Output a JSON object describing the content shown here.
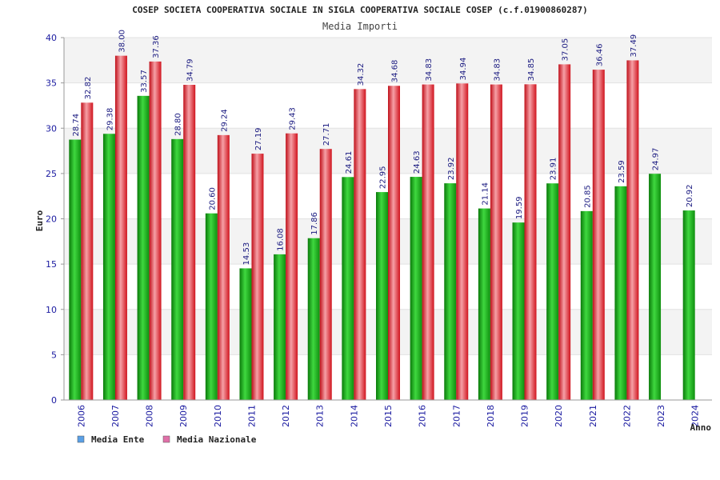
{
  "chart_data": {
    "type": "bar",
    "title": "COSEP SOCIETA COOPERATIVA SOCIALE IN SIGLA COOPERATIVA SOCIALE COSEP (c.f.01900860287)",
    "subtitle": "Media Importi",
    "xlabel": "Anno",
    "ylabel": "Euro",
    "ylim": [
      0,
      40
    ],
    "yticks": [
      0,
      5,
      10,
      15,
      20,
      25,
      30,
      35,
      40
    ],
    "grid": true,
    "legend_position": "bottom-left",
    "categories": [
      "2006",
      "2007",
      "2008",
      "2009",
      "2010",
      "2011",
      "2012",
      "2013",
      "2014",
      "2015",
      "2016",
      "2017",
      "2018",
      "2019",
      "2020",
      "2021",
      "2022",
      "2023",
      "2024"
    ],
    "series": [
      {
        "name": "Media Ente",
        "color": "#1fb51f",
        "legend_color": "#5aa0e6",
        "values": [
          28.74,
          29.38,
          33.57,
          28.8,
          20.6,
          14.53,
          16.08,
          17.86,
          24.61,
          22.95,
          24.63,
          23.92,
          21.14,
          19.59,
          23.91,
          20.85,
          23.59,
          24.97,
          20.92
        ],
        "labels": [
          "28.74",
          "29.38",
          "33.57",
          "28.80",
          "20.60",
          "14.53",
          "16.08",
          "17.86",
          "24.61",
          "22.95",
          "24.63",
          "23.92",
          "21.14",
          "19.59",
          "23.91",
          "20.85",
          "23.59",
          "24.97",
          "20.92"
        ]
      },
      {
        "name": "Media Nazionale",
        "color": "#e8202a",
        "legend_color": "#e070a8",
        "values": [
          32.82,
          38.0,
          37.36,
          34.79,
          29.24,
          27.19,
          29.43,
          27.71,
          34.32,
          34.68,
          34.83,
          34.94,
          34.83,
          34.85,
          37.05,
          36.46,
          37.49,
          null,
          null
        ],
        "labels": [
          "32.82",
          "38.00",
          "37.36",
          "34.79",
          "29.24",
          "27.19",
          "29.43",
          "27.71",
          "34.32",
          "34.68",
          "34.83",
          "34.94",
          "34.83",
          "34.85",
          "37.05",
          "36.46",
          "37.49",
          null,
          null
        ]
      }
    ]
  }
}
